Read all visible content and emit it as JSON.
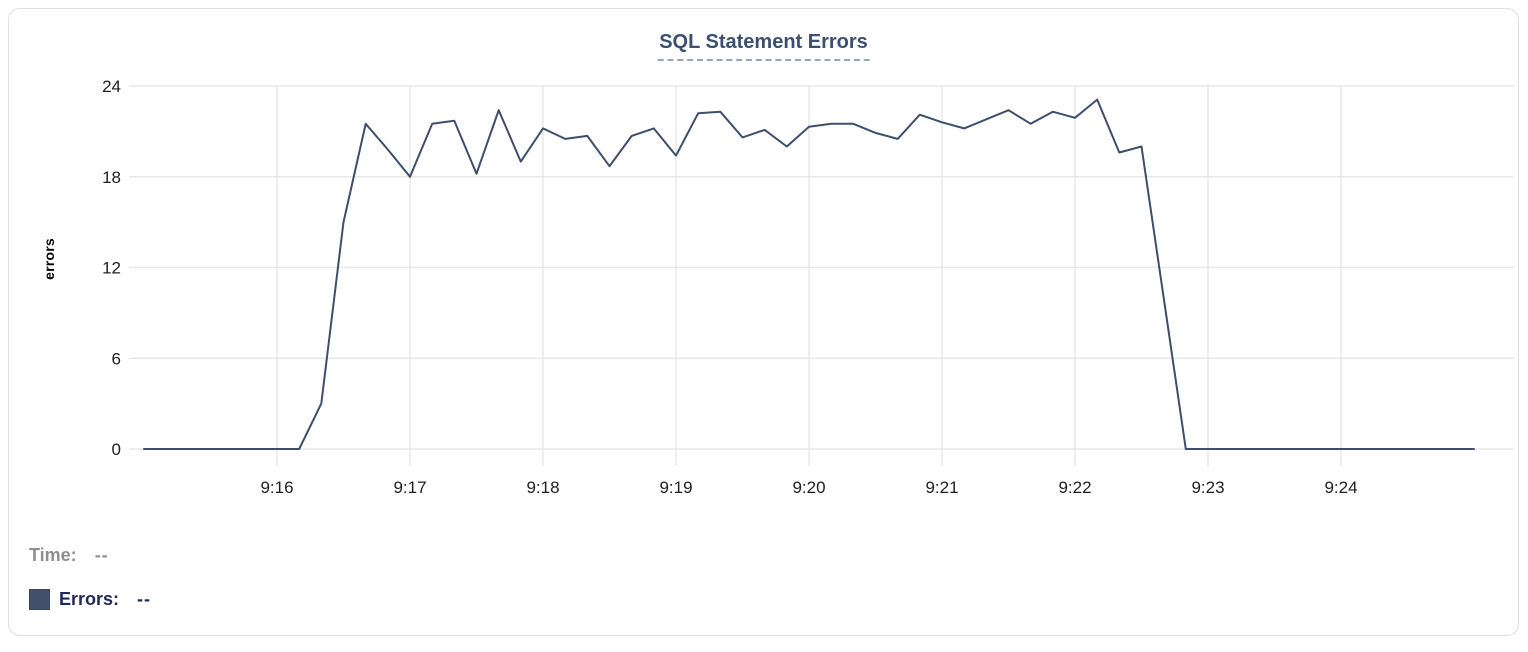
{
  "card": {
    "title": "SQL Statement Errors"
  },
  "legend": {
    "time_label": "Time:",
    "time_value": "--",
    "errors_label": "Errors:",
    "errors_value": "--"
  },
  "colors": {
    "line": "#3e4e6c",
    "title": "#3b5070",
    "title_underline": "#98a6bd",
    "grid": "#e7e7e7",
    "tick_text": "#202020",
    "legend_muted": "#8e8e8e",
    "legend_errors": "#1d2a57",
    "swatch": "#44516d",
    "card_border": "#dfdfdf"
  },
  "chart_data": {
    "type": "line",
    "title": "SQL Statement Errors",
    "xlabel": "",
    "ylabel": "errors",
    "ylim": [
      0,
      24
    ],
    "yticks": [
      0,
      6,
      12,
      18,
      24
    ],
    "xticks": [
      "9:16",
      "9:17",
      "9:18",
      "9:19",
      "9:20",
      "9:21",
      "9:22",
      "9:23",
      "9:24"
    ],
    "grid": true,
    "legend_position": "bottom-left",
    "series": [
      {
        "name": "Errors",
        "color": "#3e4e6c",
        "x": [
          "9:15:00",
          "9:15:10",
          "9:15:20",
          "9:15:30",
          "9:15:40",
          "9:15:50",
          "9:16:00",
          "9:16:10",
          "9:16:20",
          "9:16:30",
          "9:16:40",
          "9:16:50",
          "9:17:00",
          "9:17:10",
          "9:17:20",
          "9:17:30",
          "9:17:40",
          "9:17:50",
          "9:18:00",
          "9:18:10",
          "9:18:20",
          "9:18:30",
          "9:18:40",
          "9:18:50",
          "9:19:00",
          "9:19:10",
          "9:19:20",
          "9:19:30",
          "9:19:40",
          "9:19:50",
          "9:20:00",
          "9:20:10",
          "9:20:20",
          "9:20:30",
          "9:20:40",
          "9:20:50",
          "9:21:00",
          "9:21:10",
          "9:21:20",
          "9:21:30",
          "9:21:40",
          "9:21:50",
          "9:22:00",
          "9:22:10",
          "9:22:20",
          "9:22:30",
          "9:22:40",
          "9:22:50",
          "9:23:00",
          "9:23:10",
          "9:23:20",
          "9:23:30",
          "9:23:40",
          "9:23:50",
          "9:24:00",
          "9:24:10",
          "9:24:20",
          "9:24:30",
          "9:24:40",
          "9:24:50",
          "9:25:00"
        ],
        "values": [
          0,
          0,
          0,
          0,
          0,
          0,
          0,
          0,
          3,
          15,
          21.5,
          19.8,
          18,
          21.5,
          21.7,
          18.2,
          22.4,
          19,
          21.2,
          20.5,
          20.7,
          18.7,
          20.7,
          21.2,
          19.4,
          22.2,
          22.3,
          20.6,
          21.1,
          20,
          21.3,
          21.5,
          21.5,
          20.9,
          20.5,
          22.1,
          21.6,
          21.2,
          21.8,
          22.4,
          21.5,
          22.3,
          21.9,
          23.1,
          19.6,
          20,
          10,
          0,
          0,
          0,
          0,
          0,
          0,
          0,
          0,
          0,
          0,
          0,
          0,
          0,
          0
        ]
      }
    ]
  }
}
